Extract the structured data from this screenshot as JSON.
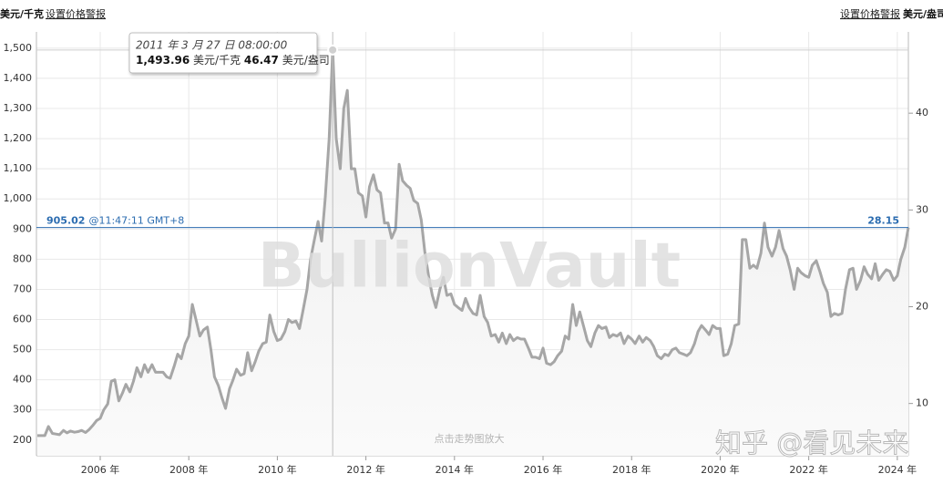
{
  "header": {
    "left_unit": "美元/千克",
    "left_link": "设置价格警报",
    "right_link": "设置价格警报",
    "right_unit": "美元/盎司"
  },
  "watermark": "BullionVault",
  "zoom_hint": "点击走势图放大",
  "source_watermark": "知乎 @看见未来",
  "tooltip": {
    "date": "2011 年 3 月 27 日 08:00:00",
    "value": {
      "value": 1493.96,
      "label": "1,493.96"
    },
    "unit_kg": "美元/千克",
    "value_oz": 46.47,
    "unit_oz": "美元/盎司"
  },
  "chart_data": {
    "type": "line",
    "x": [
      2004.58,
      2004.67,
      2004.75,
      2004.83,
      2004.92,
      2005,
      2005.08,
      2005.17,
      2005.25,
      2005.33,
      2005.42,
      2005.5,
      2005.58,
      2005.67,
      2005.75,
      2005.83,
      2005.92,
      2006,
      2006.08,
      2006.17,
      2006.25,
      2006.33,
      2006.42,
      2006.5,
      2006.58,
      2006.67,
      2006.75,
      2006.83,
      2006.92,
      2007,
      2007.08,
      2007.17,
      2007.25,
      2007.33,
      2007.42,
      2007.5,
      2007.58,
      2007.67,
      2007.75,
      2007.83,
      2007.92,
      2008,
      2008.08,
      2008.17,
      2008.25,
      2008.33,
      2008.42,
      2008.5,
      2008.58,
      2008.67,
      2008.75,
      2008.83,
      2008.92,
      2009,
      2009.08,
      2009.17,
      2009.25,
      2009.33,
      2009.42,
      2009.5,
      2009.58,
      2009.67,
      2009.75,
      2009.83,
      2009.92,
      2010,
      2010.08,
      2010.17,
      2010.25,
      2010.33,
      2010.42,
      2010.5,
      2010.58,
      2010.67,
      2010.75,
      2010.83,
      2010.92,
      2011,
      2011.08,
      2011.17,
      2011.25,
      2011.33,
      2011.42,
      2011.5,
      2011.58,
      2011.67,
      2011.75,
      2011.83,
      2011.92,
      2012,
      2012.08,
      2012.17,
      2012.25,
      2012.33,
      2012.42,
      2012.5,
      2012.58,
      2012.67,
      2012.75,
      2012.83,
      2012.92,
      2013,
      2013.08,
      2013.17,
      2013.25,
      2013.33,
      2013.42,
      2013.5,
      2013.58,
      2013.67,
      2013.75,
      2013.83,
      2013.92,
      2014,
      2014.08,
      2014.17,
      2014.25,
      2014.33,
      2014.42,
      2014.5,
      2014.58,
      2014.67,
      2014.75,
      2014.83,
      2014.92,
      2015,
      2015.08,
      2015.17,
      2015.25,
      2015.33,
      2015.42,
      2015.5,
      2015.58,
      2015.67,
      2015.75,
      2015.83,
      2015.92,
      2016,
      2016.08,
      2016.17,
      2016.25,
      2016.33,
      2016.42,
      2016.5,
      2016.58,
      2016.67,
      2016.75,
      2016.83,
      2016.92,
      2017,
      2017.08,
      2017.17,
      2017.25,
      2017.33,
      2017.42,
      2017.5,
      2017.58,
      2017.67,
      2017.75,
      2017.83,
      2017.92,
      2018,
      2018.08,
      2018.17,
      2018.25,
      2018.33,
      2018.42,
      2018.5,
      2018.58,
      2018.67,
      2018.75,
      2018.83,
      2018.92,
      2019,
      2019.08,
      2019.17,
      2019.25,
      2019.33,
      2019.42,
      2019.5,
      2019.58,
      2019.67,
      2019.75,
      2019.83,
      2019.92,
      2020,
      2020.08,
      2020.17,
      2020.25,
      2020.33,
      2020.42,
      2020.5,
      2020.58,
      2020.67,
      2020.75,
      2020.83,
      2020.92,
      2021,
      2021.08,
      2021.17,
      2021.25,
      2021.33,
      2021.42,
      2021.5,
      2021.58,
      2021.67,
      2021.75,
      2021.83,
      2021.92,
      2022,
      2022.08,
      2022.17,
      2022.25,
      2022.33,
      2022.42,
      2022.5,
      2022.58,
      2022.67,
      2022.75,
      2022.83,
      2022.92,
      2023,
      2023.08,
      2023.17,
      2023.25,
      2023.33,
      2023.42,
      2023.5,
      2023.58,
      2023.67,
      2023.75,
      2023.83,
      2023.92,
      2024,
      2024.08,
      2024.17,
      2024.25
    ],
    "series": [
      {
        "color": "#a6a6a6",
        "values": [
          215,
          215,
          215,
          245,
          222,
          220,
          218,
          232,
          224,
          230,
          226,
          228,
          232,
          225,
          235,
          248,
          265,
          272,
          300,
          320,
          395,
          400,
          330,
          355,
          385,
          360,
          395,
          440,
          410,
          450,
          425,
          450,
          425,
          425,
          425,
          410,
          405,
          445,
          485,
          470,
          520,
          545,
          650,
          595,
          545,
          565,
          575,
          500,
          410,
          380,
          340,
          305,
          370,
          400,
          435,
          415,
          420,
          490,
          430,
          460,
          495,
          520,
          525,
          615,
          560,
          530,
          535,
          560,
          600,
          590,
          595,
          570,
          630,
          700,
          800,
          860,
          925,
          860,
          1000,
          1200,
          1493.96,
          1200,
          1100,
          1300,
          1360,
          1100,
          1100,
          1020,
          1010,
          940,
          1040,
          1080,
          1030,
          1020,
          920,
          920,
          870,
          900,
          1115,
          1060,
          1045,
          1035,
          995,
          985,
          930,
          825,
          740,
          680,
          640,
          700,
          740,
          680,
          685,
          650,
          640,
          630,
          670,
          640,
          620,
          615,
          680,
          610,
          590,
          545,
          550,
          525,
          555,
          520,
          550,
          530,
          540,
          535,
          535,
          505,
          475,
          475,
          470,
          505,
          455,
          450,
          460,
          480,
          495,
          545,
          535,
          650,
          580,
          625,
          575,
          530,
          510,
          555,
          580,
          570,
          575,
          540,
          550,
          545,
          555,
          520,
          545,
          535,
          520,
          545,
          525,
          540,
          530,
          510,
          480,
          470,
          485,
          480,
          500,
          505,
          490,
          485,
          480,
          490,
          520,
          560,
          580,
          565,
          550,
          580,
          570,
          570,
          480,
          485,
          520,
          580,
          585,
          865,
          865,
          770,
          780,
          770,
          820,
          920,
          840,
          810,
          840,
          895,
          835,
          810,
          765,
          700,
          770,
          755,
          745,
          740,
          780,
          795,
          760,
          720,
          690,
          610,
          620,
          615,
          620,
          700,
          765,
          770,
          700,
          730,
          775,
          750,
          735,
          785,
          730,
          750,
          765,
          760,
          730,
          745,
          800,
          840,
          905
        ]
      }
    ],
    "xlim": [
      2004.56,
      2024.25
    ],
    "xticks": [
      {
        "value": 2006,
        "label": "2006 年"
      },
      {
        "value": 2008,
        "label": "2008 年"
      },
      {
        "value": 2010,
        "label": "2010 年"
      },
      {
        "value": 2012,
        "label": "2012 年"
      },
      {
        "value": 2014,
        "label": "2014 年"
      },
      {
        "value": 2016,
        "label": "2016 年"
      },
      {
        "value": 2018,
        "label": "2018 年"
      },
      {
        "value": 2020,
        "label": "2020 年"
      },
      {
        "value": 2022,
        "label": "2022 年"
      },
      {
        "value": 2024,
        "label": "2024 年"
      }
    ],
    "ylim": [
      148,
      1554
    ],
    "yticks": [
      200,
      300,
      400,
      500,
      600,
      700,
      800,
      900,
      {
        "value": 1000,
        "label": "1,000"
      },
      {
        "value": 1100,
        "label": "1,100"
      },
      {
        "value": 1200,
        "label": "1,200"
      },
      {
        "value": 1300,
        "label": "1,300"
      },
      {
        "value": 1400,
        "label": "1,400"
      },
      {
        "value": 1500,
        "label": "1,500"
      }
    ],
    "y2lim": [
      4.6,
      48.4
    ],
    "y2ticks": [
      10,
      20,
      30,
      40
    ],
    "grid": true,
    "reference": {
      "value": 905.02,
      "time": "@11:47:11 GMT+8",
      "value_y2": 28.15,
      "color": "#2b6cb0"
    }
  }
}
